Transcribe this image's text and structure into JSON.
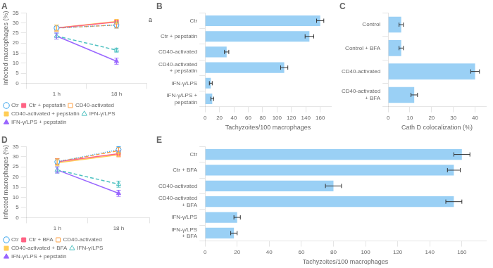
{
  "chart_data": [
    {
      "type": "line",
      "title": "A",
      "categories": [
        "1 h",
        "18 h"
      ],
      "series": [
        {
          "name": "Ctr",
          "values": [
            27.5,
            29.0
          ],
          "errors": [
            1.5,
            1.5
          ],
          "line_style": "dotted",
          "marker": "open-circle"
        },
        {
          "name": "Ctr + pepstatin",
          "values": [
            27.5,
            30.5
          ],
          "errors": [
            1.5,
            1.0
          ],
          "line_style": "solid",
          "marker": "filled-square"
        },
        {
          "name": "CD40-activated",
          "values": [
            27.5,
            29.0
          ],
          "errors": [
            1.5,
            1.5
          ],
          "line_style": "dashed",
          "marker": "open-square"
        },
        {
          "name": "CD40-activated + pepstatin",
          "values": [
            27.5,
            30.8
          ],
          "errors": [
            1.5,
            1.0
          ],
          "line_style": "solid",
          "marker": "filled-square"
        },
        {
          "name": "IFN-γ/LPS",
          "values": [
            23.5,
            16.5
          ],
          "errors": [
            1.5,
            1.0
          ],
          "line_style": "dashed",
          "marker": "open-triangle"
        },
        {
          "name": "IFN-γ/LPS + pepstatin",
          "values": [
            23.5,
            11.0
          ],
          "errors": [
            1.5,
            1.5
          ],
          "line_style": "solid",
          "marker": "filled-triangle"
        }
      ],
      "ylabel": "Infected macrophages (%)",
      "ylim": [
        0,
        35
      ],
      "yticks": [
        0,
        5,
        10,
        15,
        20,
        25,
        30,
        35
      ],
      "legend": "lower left",
      "grid": false,
      "annotations": [
        {
          "text": "a",
          "y": 31.5
        }
      ]
    },
    {
      "type": "bar",
      "orientation": "horizontal",
      "title": "B",
      "categories": [
        "Ctr",
        "Ctr + pepstatin",
        "CD40-activated",
        "CD40-activated\n+ pepstatin",
        "IFN-γ/LPS",
        "IFN-γ/LPS +\npepstatin"
      ],
      "values": [
        160,
        145,
        30,
        110,
        8,
        10
      ],
      "errors": [
        5,
        6,
        3,
        5,
        2,
        2
      ],
      "xlabel": "Tachyzoites/100 macrophages",
      "xlim": [
        0,
        175
      ],
      "xticks": [
        0,
        20,
        40,
        60,
        80,
        100,
        120,
        140,
        160
      ],
      "grid": false
    },
    {
      "type": "bar",
      "orientation": "horizontal",
      "title": "C",
      "categories": [
        "Control",
        "Control + BFA",
        "CD40-activated",
        "CD40-activated\n+ BFA"
      ],
      "values": [
        6,
        6,
        40,
        12
      ],
      "errors": [
        1.0,
        1.0,
        2.0,
        1.5
      ],
      "xlabel": "Cath D colocalization (%)",
      "xlim": [
        0,
        45
      ],
      "xticks": [
        0,
        10,
        20,
        30,
        40
      ],
      "grid": false
    },
    {
      "type": "line",
      "title": "D",
      "categories": [
        "1 h",
        "18 h"
      ],
      "series": [
        {
          "name": "Ctr",
          "values": [
            27.5,
            33.5
          ],
          "errors": [
            1.5,
            1.5
          ],
          "line_style": "dotted",
          "marker": "open-circle"
        },
        {
          "name": "Ctr + BFA",
          "values": [
            27.5,
            31.5
          ],
          "errors": [
            1.5,
            1.5
          ],
          "line_style": "solid",
          "marker": "filled-square"
        },
        {
          "name": "CD40-activated",
          "values": [
            27.5,
            33.0
          ],
          "errors": [
            1.5,
            1.5
          ],
          "line_style": "dashed",
          "marker": "open-square"
        },
        {
          "name": "CD40-activated + BFA",
          "values": [
            27.0,
            31.0
          ],
          "errors": [
            1.5,
            1.0
          ],
          "line_style": "solid",
          "marker": "filled-square"
        },
        {
          "name": "IFN-γ/LPS",
          "values": [
            23.5,
            16.5
          ],
          "errors": [
            1.5,
            1.5
          ],
          "line_style": "dashed",
          "marker": "open-triangle"
        },
        {
          "name": "IFN-γ/LPS + pepstatin",
          "values": [
            23.5,
            12.0
          ],
          "errors": [
            1.5,
            1.5
          ],
          "line_style": "solid",
          "marker": "filled-triangle"
        }
      ],
      "ylabel": "Infected macrophages (%)",
      "ylim": [
        0,
        35
      ],
      "yticks": [
        0,
        5,
        10,
        15,
        20,
        25,
        30,
        35
      ],
      "legend": "lower left",
      "grid": false
    },
    {
      "type": "bar",
      "orientation": "horizontal",
      "title": "E",
      "categories": [
        "Ctr",
        "Ctr + BFA",
        "CD40-activated",
        "CD40-activated\n+ BFA",
        "IFN-γ/LPS",
        "IFN-γ/LPS\n+ BFA"
      ],
      "values": [
        160,
        155,
        80,
        155,
        20,
        18
      ],
      "errors": [
        5,
        4,
        5,
        5,
        2,
        2
      ],
      "xlabel": "Tachyzoites/100 macrophages",
      "xlim": [
        0,
        175
      ],
      "xticks": [
        0,
        20,
        40,
        60,
        80,
        100,
        120,
        140,
        160
      ],
      "grid": false
    }
  ]
}
